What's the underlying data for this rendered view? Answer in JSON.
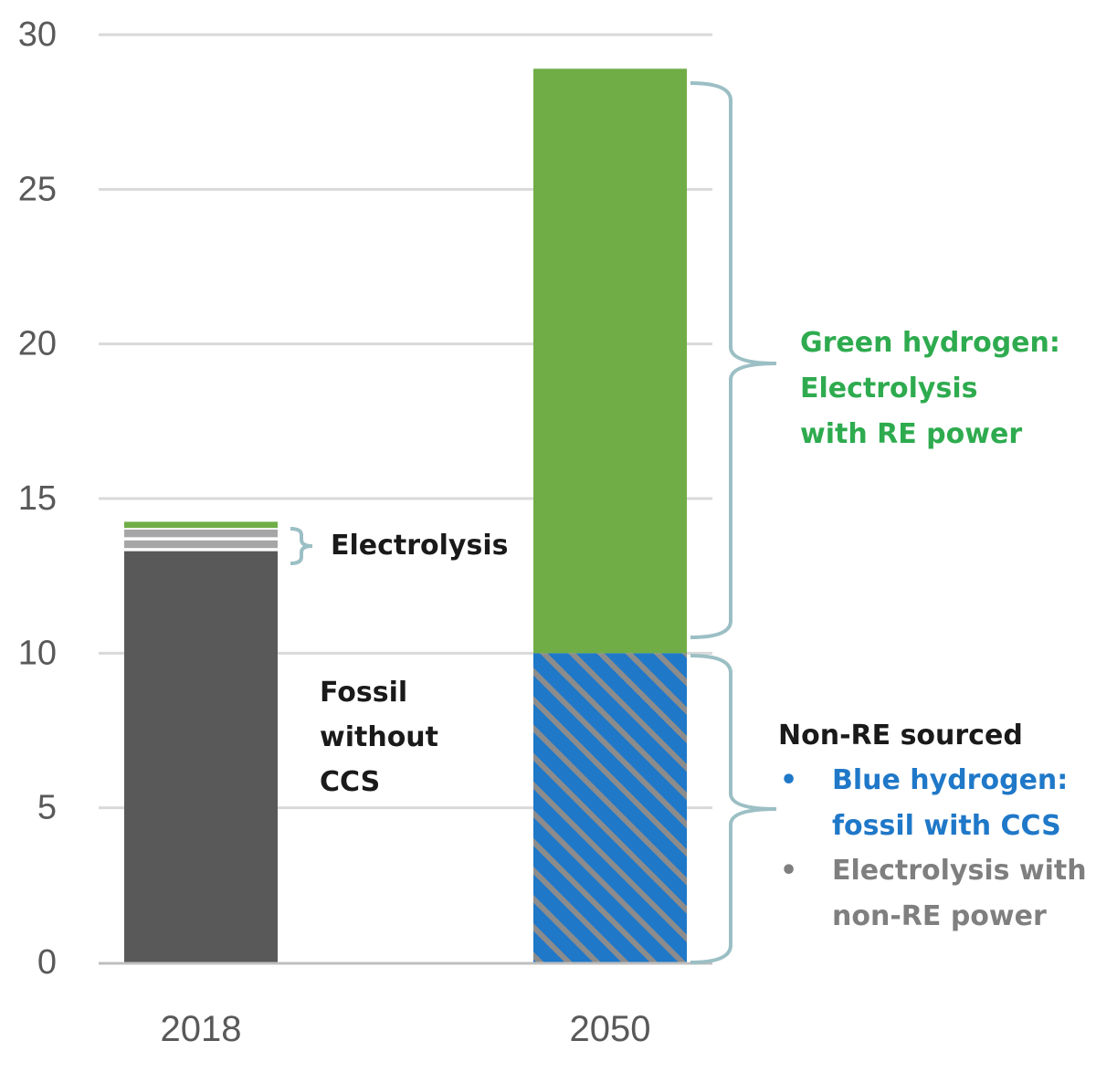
{
  "chart_data": {
    "type": "bar",
    "stacked": true,
    "categories": [
      "2018",
      "2050"
    ],
    "ylim": [
      0,
      30
    ],
    "yticks": [
      0,
      5,
      10,
      15,
      20,
      25,
      30
    ],
    "grid": true,
    "legend": "none",
    "series": [
      {
        "values": [
          13.3,
          0
        ],
        "color": "#595959",
        "pattern": "solid"
      },
      {
        "values": [
          0.1,
          0
        ],
        "color": "#ffffff",
        "pattern": "solid"
      },
      {
        "values": [
          0.25,
          0
        ],
        "color": "#a6a6a6",
        "pattern": "solid"
      },
      {
        "values": [
          0.1,
          0
        ],
        "color": "#ffffff",
        "pattern": "solid"
      },
      {
        "values": [
          0.25,
          0
        ],
        "color": "#a6a6a6",
        "pattern": "solid"
      },
      {
        "values": [
          0.05,
          0
        ],
        "color": "#ffffff",
        "pattern": "solid"
      },
      {
        "values": [
          0.2,
          0
        ],
        "color": "#70ad47",
        "pattern": "solid"
      },
      {
        "values": [
          0,
          10
        ],
        "color": "#1f78c8",
        "pattern": "striped"
      },
      {
        "values": [
          0,
          18.9
        ],
        "color": "#70ad47",
        "pattern": "solid"
      }
    ],
    "annotations": {
      "electrolysis_2018": {
        "text": "Electrolysis",
        "color": "#1a1a1a"
      },
      "fossil": {
        "lines": [
          "Fossil",
          "without",
          "CCS"
        ],
        "color": "#1a1a1a"
      },
      "green": {
        "lines": [
          "Green hydrogen:",
          "Electrolysis",
          "with RE power"
        ],
        "color": "#2eab4f"
      },
      "non_re_heading": {
        "text": "Non-RE sourced",
        "color": "#1a1a1a"
      },
      "blue_bullet": {
        "bullet": "•",
        "lines": [
          "Blue hydrogen:",
          "fossil with CCS"
        ],
        "color": "#1f78c8"
      },
      "grey_bullet": {
        "bullet": "•",
        "lines": [
          "Electrolysis with",
          "non-RE power"
        ],
        "color": "#7f7f7f"
      }
    },
    "colors": {
      "grid": "#d9d9d9",
      "axis": "#bfbfbf",
      "brace": "#9bbfc4",
      "stripe": "#8c8c8c"
    }
  }
}
